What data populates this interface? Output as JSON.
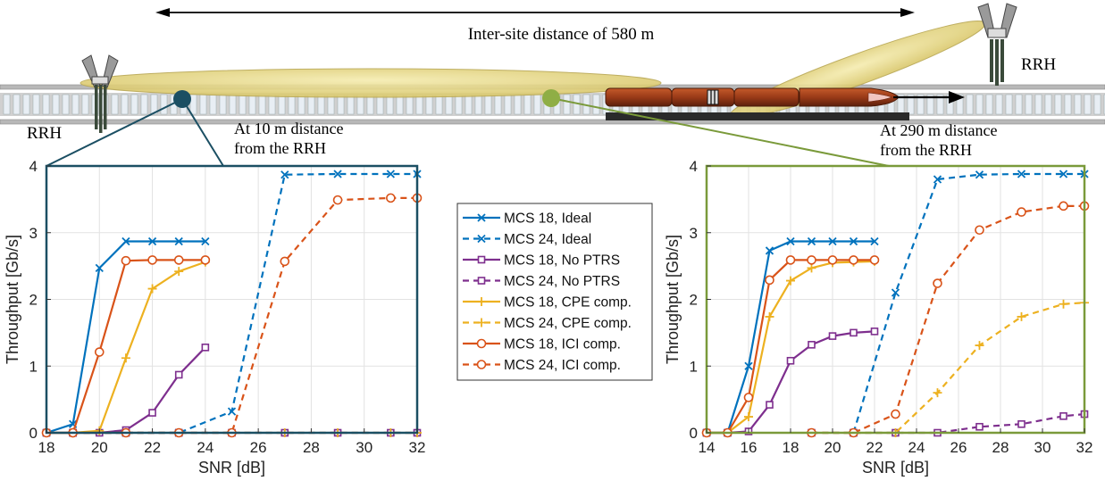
{
  "scene": {
    "distance_label": "Inter-site distance of 580 m",
    "rrh_left_label": "RRH",
    "rrh_right_label": "RRH",
    "left_callout": [
      "At 10 m distance",
      "from the RRH"
    ],
    "right_callout": [
      "At 290 m distance",
      "from the RRH"
    ],
    "left_marker_color": "#1b4f63",
    "right_marker_color": "#7a9a3a"
  },
  "legend": {
    "entries": [
      {
        "label": "MCS 18, Ideal",
        "color": "#0072BD",
        "dash": false,
        "marker": "x"
      },
      {
        "label": "MCS 24, Ideal",
        "color": "#0072BD",
        "dash": true,
        "marker": "x"
      },
      {
        "label": "MCS 18, No PTRS",
        "color": "#7E2F8E",
        "dash": false,
        "marker": "square"
      },
      {
        "label": "MCS 24, No PTRS",
        "color": "#7E2F8E",
        "dash": true,
        "marker": "square"
      },
      {
        "label": "MCS 18, CPE comp.",
        "color": "#EDB120",
        "dash": false,
        "marker": "plus"
      },
      {
        "label": "MCS 24, CPE comp.",
        "color": "#EDB120",
        "dash": true,
        "marker": "plus"
      },
      {
        "label": "MCS 18,  ICI comp.",
        "color": "#D95319",
        "dash": false,
        "marker": "circle"
      },
      {
        "label": "MCS 24, ICI comp.",
        "color": "#D95319",
        "dash": true,
        "marker": "circle"
      }
    ]
  },
  "chart_data": [
    {
      "type": "line",
      "xlabel": "SNR [dB]",
      "ylabel": "Throughput [Gb/s]",
      "xlim": [
        18,
        32
      ],
      "ylim": [
        0,
        4
      ],
      "xticks": [
        18,
        20,
        22,
        24,
        26,
        28,
        30,
        32
      ],
      "yticks": [
        0,
        1,
        2,
        3,
        4
      ],
      "grid": true,
      "frame_color": "#1b4f63",
      "series": [
        {
          "name": "MCS 18, Ideal",
          "color": "#0072BD",
          "dash": false,
          "marker": "x",
          "x": [
            18,
            19,
            20,
            21,
            22,
            23,
            24
          ],
          "y": [
            0,
            0.13,
            2.47,
            2.87,
            2.87,
            2.87,
            2.87
          ]
        },
        {
          "name": "MCS 24, Ideal",
          "color": "#0072BD",
          "dash": true,
          "marker": "x",
          "x": [
            19,
            21,
            23,
            25,
            27,
            29,
            31,
            32
          ],
          "y": [
            0,
            0,
            0,
            0.32,
            3.87,
            3.88,
            3.88,
            3.88
          ]
        },
        {
          "name": "MCS 18, No PTRS",
          "color": "#7E2F8E",
          "dash": false,
          "marker": "square",
          "x": [
            18,
            19,
            20,
            21,
            22,
            23,
            24
          ],
          "y": [
            0,
            0,
            0,
            0.04,
            0.3,
            0.87,
            1.28
          ]
        },
        {
          "name": "MCS 24, No PTRS",
          "color": "#7E2F8E",
          "dash": true,
          "marker": "square",
          "x": [
            19,
            21,
            23,
            25,
            27,
            29,
            31,
            32
          ],
          "y": [
            0,
            0,
            0,
            0,
            0,
            0,
            0,
            0
          ]
        },
        {
          "name": "MCS 18, CPE comp.",
          "color": "#EDB120",
          "dash": false,
          "marker": "plus",
          "x": [
            18,
            19,
            20,
            21,
            22,
            23,
            24
          ],
          "y": [
            0,
            0,
            0.03,
            1.12,
            2.16,
            2.42,
            2.56
          ]
        },
        {
          "name": "MCS 24, CPE comp.",
          "color": "#EDB120",
          "dash": true,
          "marker": "plus",
          "x": [
            19,
            21,
            23,
            25,
            27,
            29,
            31,
            32
          ],
          "y": [
            0,
            0,
            0,
            0,
            0,
            0,
            0,
            0
          ]
        },
        {
          "name": "MCS 18,  ICI comp.",
          "color": "#D95319",
          "dash": false,
          "marker": "circle",
          "x": [
            18,
            19,
            20,
            21,
            22,
            23,
            24
          ],
          "y": [
            0,
            0,
            1.21,
            2.58,
            2.59,
            2.59,
            2.59
          ]
        },
        {
          "name": "MCS 24, ICI comp.",
          "color": "#D95319",
          "dash": true,
          "marker": "circle",
          "x": [
            19,
            21,
            23,
            25,
            27,
            29,
            31,
            32
          ],
          "y": [
            0,
            0,
            0,
            0,
            2.57,
            3.49,
            3.52,
            3.52
          ]
        }
      ]
    },
    {
      "type": "line",
      "xlabel": "SNR [dB]",
      "ylabel": "Throughput [Gb/s]",
      "xlim": [
        14,
        32
      ],
      "ylim": [
        0,
        4
      ],
      "xticks": [
        14,
        16,
        18,
        20,
        22,
        24,
        26,
        28,
        30,
        32
      ],
      "yticks": [
        0,
        1,
        2,
        3,
        4
      ],
      "grid": true,
      "frame_color": "#7a9a3a",
      "series": [
        {
          "name": "MCS 18, Ideal",
          "color": "#0072BD",
          "dash": false,
          "marker": "x",
          "x": [
            14,
            15,
            16,
            17,
            18,
            19,
            20,
            21,
            22
          ],
          "y": [
            0,
            0,
            1.0,
            2.73,
            2.87,
            2.87,
            2.87,
            2.87,
            2.87
          ]
        },
        {
          "name": "MCS 24, Ideal",
          "color": "#0072BD",
          "dash": true,
          "marker": "x",
          "x": [
            21,
            23,
            25,
            27,
            29,
            31,
            32
          ],
          "y": [
            0,
            2.1,
            3.8,
            3.87,
            3.88,
            3.88,
            3.88
          ]
        },
        {
          "name": "MCS 18, No PTRS",
          "color": "#7E2F8E",
          "dash": false,
          "marker": "square",
          "x": [
            14,
            15,
            16,
            17,
            18,
            19,
            20,
            21,
            22
          ],
          "y": [
            0,
            0,
            0.02,
            0.42,
            1.08,
            1.32,
            1.45,
            1.5,
            1.52
          ]
        },
        {
          "name": "MCS 24, No PTRS",
          "color": "#7E2F8E",
          "dash": true,
          "marker": "square",
          "x": [
            19,
            21,
            23,
            25,
            27,
            29,
            31,
            32
          ],
          "y": [
            0,
            0,
            0,
            0,
            0.09,
            0.13,
            0.25,
            0.28
          ]
        },
        {
          "name": "MCS 18, CPE comp.",
          "color": "#EDB120",
          "dash": false,
          "marker": "plus",
          "x": [
            14,
            15,
            16,
            17,
            18,
            19,
            20,
            21,
            22
          ],
          "y": [
            0,
            0,
            0.24,
            1.74,
            2.28,
            2.47,
            2.55,
            2.56,
            2.57
          ]
        },
        {
          "name": "MCS 24, CPE comp.",
          "color": "#EDB120",
          "dash": true,
          "marker": "plus",
          "x": [
            19,
            21,
            23,
            25,
            27,
            29,
            31,
            32
          ],
          "y": [
            0,
            0,
            0,
            0.6,
            1.31,
            1.74,
            1.93,
            1.95
          ]
        },
        {
          "name": "MCS 18,  ICI comp.",
          "color": "#D95319",
          "dash": false,
          "marker": "circle",
          "x": [
            14,
            15,
            16,
            17,
            18,
            19,
            20,
            21,
            22
          ],
          "y": [
            0,
            0,
            0.53,
            2.29,
            2.59,
            2.59,
            2.59,
            2.59,
            2.59
          ]
        },
        {
          "name": "MCS 24, ICI comp.",
          "color": "#D95319",
          "dash": true,
          "marker": "circle",
          "x": [
            19,
            21,
            23,
            25,
            27,
            29,
            31,
            32
          ],
          "y": [
            0,
            0,
            0.28,
            2.24,
            3.04,
            3.31,
            3.4,
            3.4
          ]
        }
      ]
    }
  ]
}
